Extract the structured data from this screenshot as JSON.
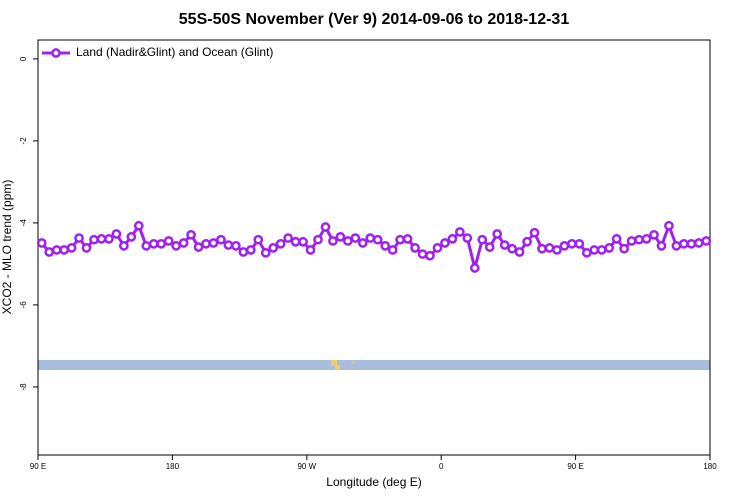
{
  "chart_data": {
    "type": "line",
    "title": "55S-50S November (Ver 9)   2014-09-06 to 2018-12-31",
    "x_label": "Longitude (deg E)",
    "y_label": "XCO2 - MLO trend (ppm)",
    "x": [
      92.5,
      97.5,
      102.5,
      107.5,
      112.5,
      117.5,
      122.5,
      127.5,
      132.5,
      137.5,
      142.5,
      147.5,
      152.5,
      157.5,
      162.5,
      167.5,
      172.5,
      177.5,
      182.5,
      187.5,
      192.5,
      197.5,
      202.5,
      207.5,
      212.5,
      217.5,
      222.5,
      227.5,
      232.5,
      237.5,
      242.5,
      247.5,
      252.5,
      257.5,
      262.5,
      267.5,
      272.5,
      277.5,
      282.5,
      287.5,
      292.5,
      297.5,
      302.5,
      307.5,
      312.5,
      317.5,
      322.5,
      327.5,
      332.5,
      337.5,
      342.5,
      347.5,
      352.5,
      357.5,
      362.5,
      367.5,
      372.5,
      377.5,
      382.5,
      387.5,
      392.5,
      397.5,
      402.5,
      407.5,
      412.5,
      417.5,
      422.5,
      427.5,
      432.5,
      437.5,
      442.5,
      447.5,
      452.5,
      457.5,
      462.5,
      467.5,
      472.5,
      477.5,
      482.5,
      487.5,
      492.5,
      497.5,
      502.5,
      507.5,
      512.5,
      517.5,
      522.5,
      527.5,
      532.5,
      537.5
    ],
    "series": [
      {
        "name": "Land (Nadir&Glint) and Ocean (Glint)",
        "color": "#a020f0",
        "values": [
          -4.49,
          -4.71,
          -4.66,
          -4.66,
          -4.61,
          -4.37,
          -4.61,
          -4.41,
          -4.39,
          -4.39,
          -4.27,
          -4.56,
          -4.34,
          -4.07,
          -4.56,
          -4.51,
          -4.51,
          -4.44,
          -4.56,
          -4.49,
          -4.29,
          -4.59,
          -4.51,
          -4.49,
          -4.41,
          -4.54,
          -4.56,
          -4.71,
          -4.66,
          -4.41,
          -4.73,
          -4.61,
          -4.51,
          -4.37,
          -4.46,
          -4.46,
          -4.66,
          -4.41,
          -4.1,
          -4.44,
          -4.34,
          -4.44,
          -4.37,
          -4.49,
          -4.37,
          -4.41,
          -4.56,
          -4.66,
          -4.41,
          -4.39,
          -4.61,
          -4.76,
          -4.8,
          -4.61,
          -4.49,
          -4.39,
          -4.22,
          -4.37,
          -5.1,
          -4.41,
          -4.59,
          -4.27,
          -4.54,
          -4.63,
          -4.71,
          -4.46,
          -4.24,
          -4.63,
          -4.61,
          -4.66,
          -4.56,
          -4.51,
          -4.51,
          -4.73,
          -4.66,
          -4.66,
          -4.61,
          -4.39,
          -4.63,
          -4.44,
          -4.41,
          -4.39,
          -4.29,
          -4.56,
          -4.07,
          -4.56,
          -4.51,
          -4.51,
          -4.49,
          -4.44
        ]
      }
    ],
    "xlim": [
      90,
      540
    ],
    "xticks": [
      {
        "value": 90,
        "label": "90 E"
      },
      180,
      {
        "value": 270,
        "label": "90 W"
      },
      {
        "value": 360,
        "label": "0"
      },
      {
        "value": 450,
        "label": "90 E"
      },
      {
        "value": 540,
        "label": "180"
      }
    ],
    "ylim": [
      -9.66,
      0.46
    ],
    "yticks": [
      0,
      -2,
      -4,
      -6,
      -8
    ],
    "legend": "top-left"
  }
}
